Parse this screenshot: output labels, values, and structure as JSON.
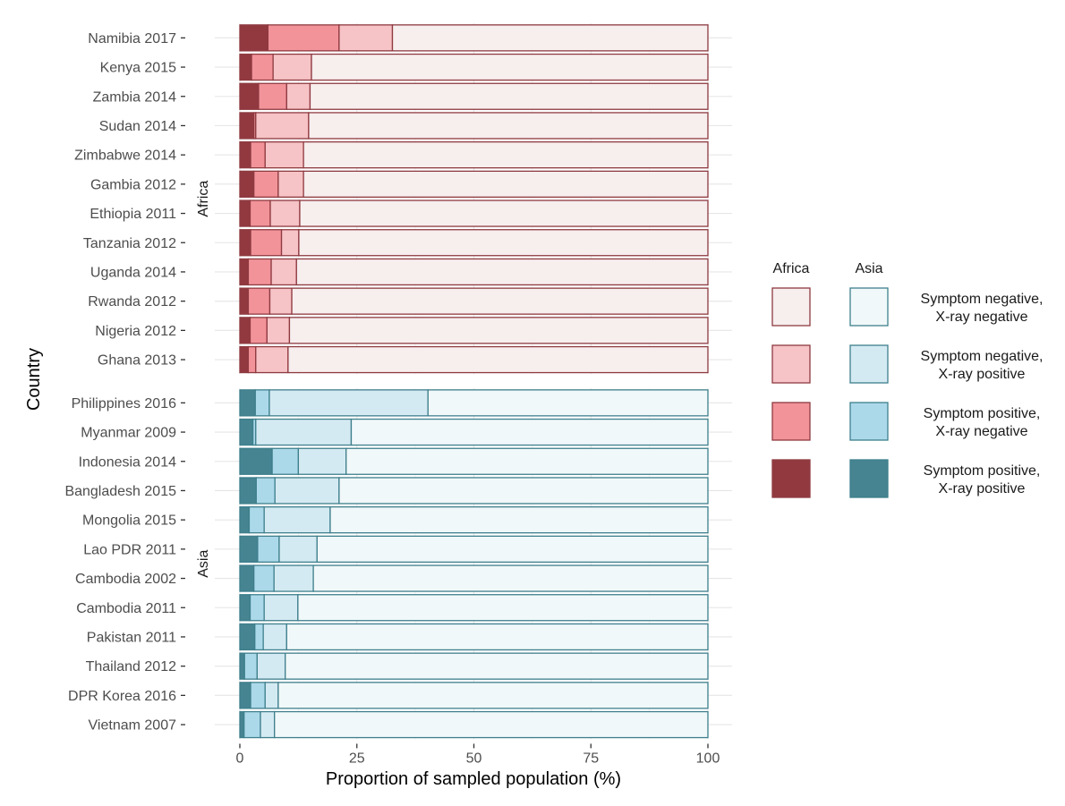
{
  "chart_data": {
    "type": "bar",
    "orientation": "horizontal",
    "stacked": true,
    "xlabel": "Proportion of sampled population (%)",
    "ylabel": "Country",
    "xlim": [
      0,
      100
    ],
    "x_ticks": [
      0,
      25,
      50,
      75,
      100
    ],
    "grid": true,
    "legend_position": "right",
    "segments": [
      "Symptom positive, X-ray positive",
      "Symptom positive, X-ray negative",
      "Symptom negative, X-ray positive",
      "Symptom negative, X-ray negative"
    ],
    "legend": {
      "group_titles": [
        "Africa",
        "Asia"
      ],
      "labels": [
        [
          "Symptom negative,",
          "X-ray negative"
        ],
        [
          "Symptom negative,",
          "X-ray positive"
        ],
        [
          "Symptom positive,",
          "X-ray negative"
        ],
        [
          "Symptom positive,",
          "X-ray positive"
        ]
      ]
    },
    "colors": {
      "Africa": {
        "border": "#8e3a40",
        "fills": [
          "#923940",
          "#f2939a",
          "#f6c3c6",
          "#f7eeee"
        ]
      },
      "Asia": {
        "border": "#3e7f8c",
        "fills": [
          "#458490",
          "#acd9ea",
          "#d4eaf2",
          "#f1f8f9"
        ]
      }
    },
    "facets": [
      {
        "name": "Africa",
        "categories": [
          "Namibia 2017",
          "Kenya 2015",
          "Zambia 2014",
          "Sudan 2014",
          "Zimbabwe 2014",
          "Gambia 2012",
          "Ethiopia 2011",
          "Tanzania 2012",
          "Uganda 2014",
          "Rwanda 2012",
          "Nigeria 2012",
          "Ghana 2013"
        ],
        "series": [
          {
            "name": "Symptom positive, X-ray positive",
            "values": [
              6.0,
              2.5,
              4.0,
              3.0,
              2.3,
              3.0,
              2.2,
              2.3,
              1.8,
              1.8,
              2.2,
              1.8
            ]
          },
          {
            "name": "Symptom positive, X-ray negative",
            "values": [
              15.2,
              4.6,
              6.0,
              0.4,
              3.1,
              5.2,
              4.3,
              6.6,
              4.9,
              4.6,
              3.6,
              1.6
            ]
          },
          {
            "name": "Symptom negative, X-ray positive",
            "values": [
              11.4,
              8.2,
              5.0,
              11.3,
              8.2,
              5.4,
              6.3,
              3.7,
              5.4,
              4.7,
              4.8,
              6.9
            ]
          },
          {
            "name": "Symptom negative, X-ray negative",
            "values": [
              67.4,
              84.7,
              85.0,
              85.3,
              86.4,
              86.4,
              87.2,
              87.4,
              87.9,
              88.9,
              89.4,
              89.7
            ]
          }
        ]
      },
      {
        "name": "Asia",
        "categories": [
          "Philippines 2016",
          "Myanmar 2009",
          "Indonesia 2014",
          "Bangladesh 2015",
          "Mongolia 2015",
          "Lao PDR 2011",
          "Cambodia 2002",
          "Cambodia 2011",
          "Pakistan 2011",
          "Thailand 2012",
          "DPR Korea 2016",
          "Vietnam 2007"
        ],
        "series": [
          {
            "name": "Symptom positive, X-ray positive",
            "values": [
              3.3,
              2.8,
              6.9,
              3.5,
              2.0,
              3.8,
              3.0,
              2.2,
              3.2,
              1.0,
              2.3,
              0.9
            ]
          },
          {
            "name": "Symptom positive, X-ray negative",
            "values": [
              3.0,
              0.6,
              5.6,
              4.0,
              3.2,
              4.6,
              4.3,
              3.0,
              1.8,
              2.7,
              3.1,
              3.5
            ]
          },
          {
            "name": "Symptom negative, X-ray positive",
            "values": [
              33.9,
              20.4,
              10.2,
              13.7,
              14.1,
              8.1,
              8.4,
              7.2,
              5.0,
              6.0,
              2.8,
              3.0
            ]
          },
          {
            "name": "Symptom negative, X-ray negative",
            "values": [
              59.8,
              76.2,
              77.3,
              78.8,
              80.7,
              83.5,
              84.3,
              87.6,
              90.0,
              90.3,
              91.8,
              92.6
            ]
          }
        ]
      }
    ]
  }
}
